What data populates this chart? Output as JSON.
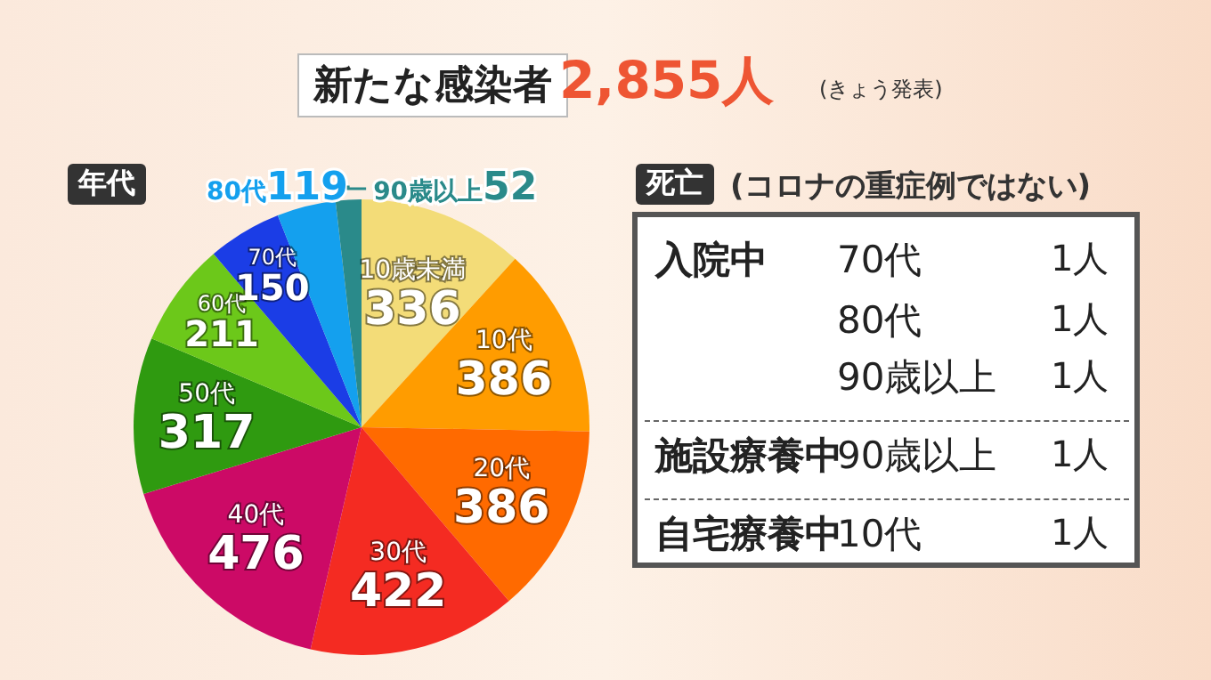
{
  "chart_data": [
    {
      "type": "pie",
      "title": "新たな感染者",
      "subtitle": "2,855人",
      "annotations": [
        "(きょう発表)"
      ],
      "legend_title": "年代",
      "data_labels": true,
      "categories": [
        "10歳未満",
        "10代",
        "20代",
        "30代",
        "40代",
        "50代",
        "60代",
        "70代",
        "80代",
        "90歳以上"
      ],
      "values": [
        336,
        386,
        386,
        422,
        476,
        317,
        211,
        150,
        119,
        52
      ],
      "colors": [
        "#f3dc78",
        "#ff9c00",
        "#ff6a00",
        "#f42b22",
        "#cc0a66",
        "#2f9a10",
        "#6cc81a",
        "#1b3de6",
        "#14a0ee",
        "#2a8a8a"
      ]
    },
    {
      "type": "other",
      "title": "死亡",
      "subtitle": "(コロナの重症例ではない)",
      "annotations": [
        "入院中",
        "70代",
        "1人",
        "80代",
        "1人",
        "90歳以上",
        "1人",
        "施設療養中",
        "90歳以上",
        "1人",
        "自宅療養中",
        "10代",
        "1人"
      ]
    }
  ]
}
